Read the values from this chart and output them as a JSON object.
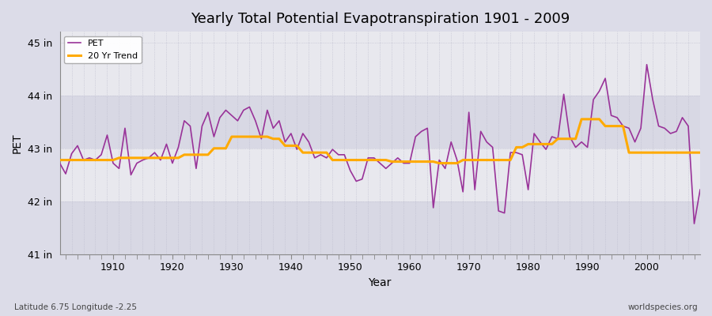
{
  "title": "Yearly Total Potential Evapotranspiration 1901 - 2009",
  "xlabel": "Year",
  "ylabel": "PET",
  "subtitle": "Latitude 6.75 Longitude -2.25",
  "watermark": "worldspecies.org",
  "pet_color": "#993399",
  "trend_color": "#ffaa00",
  "bg_outer": "#dcdce8",
  "bg_plot": "#e8e8ee",
  "bg_band_light": "#e8e8ee",
  "bg_band_dark": "#d8d8e4",
  "ylim": [
    41.0,
    45.2
  ],
  "xlim": [
    1901,
    2009
  ],
  "ytick_values": [
    41,
    42,
    43,
    44,
    45
  ],
  "years": [
    1901,
    1902,
    1903,
    1904,
    1905,
    1906,
    1907,
    1908,
    1909,
    1910,
    1911,
    1912,
    1913,
    1914,
    1915,
    1916,
    1917,
    1918,
    1919,
    1920,
    1921,
    1922,
    1923,
    1924,
    1925,
    1926,
    1927,
    1928,
    1929,
    1930,
    1931,
    1932,
    1933,
    1934,
    1935,
    1936,
    1937,
    1938,
    1939,
    1940,
    1941,
    1942,
    1943,
    1944,
    1945,
    1946,
    1947,
    1948,
    1949,
    1950,
    1951,
    1952,
    1953,
    1954,
    1955,
    1956,
    1957,
    1958,
    1959,
    1960,
    1961,
    1962,
    1963,
    1964,
    1965,
    1966,
    1967,
    1968,
    1969,
    1970,
    1971,
    1972,
    1973,
    1974,
    1975,
    1976,
    1977,
    1978,
    1979,
    1980,
    1981,
    1982,
    1983,
    1984,
    1985,
    1986,
    1987,
    1988,
    1989,
    1990,
    1991,
    1992,
    1993,
    1994,
    1995,
    1996,
    1997,
    1998,
    1999,
    2000,
    2001,
    2002,
    2003,
    2004,
    2005,
    2006,
    2007,
    2008,
    2009
  ],
  "pet_values": [
    42.72,
    42.52,
    42.9,
    43.05,
    42.78,
    42.82,
    42.78,
    42.88,
    43.25,
    42.72,
    42.62,
    43.38,
    42.5,
    42.72,
    42.78,
    42.82,
    42.92,
    42.78,
    43.08,
    42.72,
    43.02,
    43.52,
    43.42,
    42.62,
    43.42,
    43.68,
    43.22,
    43.58,
    43.72,
    43.62,
    43.52,
    43.72,
    43.78,
    43.52,
    43.18,
    43.72,
    43.38,
    43.52,
    43.12,
    43.28,
    42.98,
    43.28,
    43.12,
    42.82,
    42.88,
    42.82,
    42.98,
    42.88,
    42.88,
    42.58,
    42.38,
    42.42,
    42.82,
    42.82,
    42.72,
    42.62,
    42.72,
    42.82,
    42.72,
    42.72,
    43.22,
    43.32,
    43.38,
    41.88,
    42.78,
    42.62,
    43.12,
    42.78,
    42.18,
    43.68,
    42.22,
    43.32,
    43.12,
    43.02,
    41.82,
    41.78,
    42.92,
    42.92,
    42.88,
    42.22,
    43.28,
    43.12,
    42.98,
    43.22,
    43.18,
    44.02,
    43.22,
    43.02,
    43.12,
    43.02,
    43.92,
    44.08,
    44.32,
    43.62,
    43.58,
    43.42,
    43.38,
    43.12,
    43.38,
    44.58,
    43.92,
    43.42,
    43.38,
    43.28,
    43.32,
    43.58,
    43.42,
    41.58,
    42.22
  ],
  "trend_data": [
    [
      1901,
      42.78
    ],
    [
      1910,
      42.78
    ],
    [
      1911,
      42.82
    ],
    [
      1921,
      42.82
    ],
    [
      1922,
      42.88
    ],
    [
      1926,
      42.88
    ],
    [
      1927,
      43.0
    ],
    [
      1929,
      43.0
    ],
    [
      1930,
      43.22
    ],
    [
      1936,
      43.22
    ],
    [
      1937,
      43.18
    ],
    [
      1938,
      43.18
    ],
    [
      1939,
      43.05
    ],
    [
      1941,
      43.05
    ],
    [
      1942,
      42.92
    ],
    [
      1946,
      42.92
    ],
    [
      1947,
      42.78
    ],
    [
      1956,
      42.78
    ],
    [
      1957,
      42.75
    ],
    [
      1964,
      42.75
    ],
    [
      1965,
      42.72
    ],
    [
      1968,
      42.72
    ],
    [
      1969,
      42.78
    ],
    [
      1972,
      42.78
    ],
    [
      1973,
      42.78
    ],
    [
      1977,
      42.78
    ],
    [
      1978,
      43.02
    ],
    [
      1979,
      43.02
    ],
    [
      1980,
      43.08
    ],
    [
      1984,
      43.08
    ],
    [
      1985,
      43.18
    ],
    [
      1988,
      43.18
    ],
    [
      1989,
      43.55
    ],
    [
      1992,
      43.55
    ],
    [
      1993,
      43.42
    ],
    [
      1996,
      43.42
    ],
    [
      1997,
      42.92
    ],
    [
      2009,
      42.92
    ]
  ]
}
